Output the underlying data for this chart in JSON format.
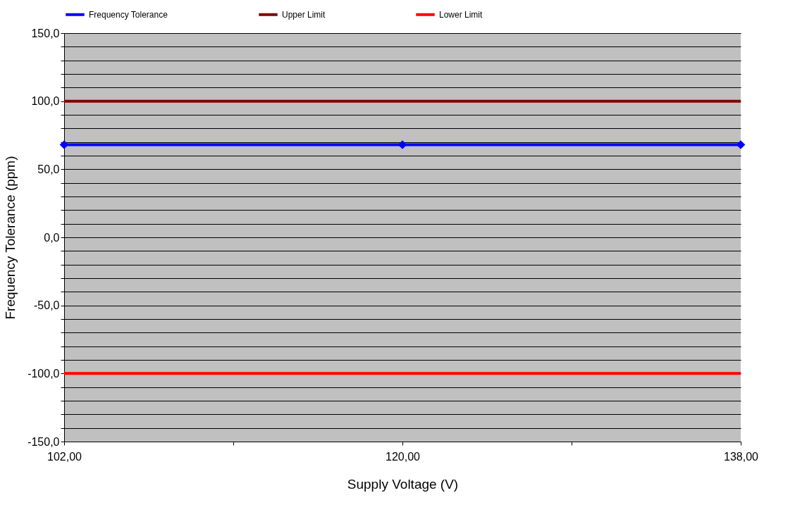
{
  "chart_data": {
    "type": "line",
    "xlabel": "Supply Voltage (V)",
    "ylabel": "Frequency Tolerance (ppm)",
    "x": [
      102,
      120,
      138
    ],
    "series": [
      {
        "name": "Frequency Tolerance",
        "color": "#0000ff",
        "values": [
          68,
          68,
          68
        ],
        "marker": "diamond"
      },
      {
        "name": "Upper Limit",
        "color": "#800000",
        "values": [
          100,
          100,
          100
        ],
        "marker": "none"
      },
      {
        "name": "Lower Limit",
        "color": "#ff0000",
        "values": [
          -100,
          -100,
          -100
        ],
        "marker": "none"
      }
    ],
    "xlim": [
      102,
      138
    ],
    "xticks": [
      {
        "value": 102,
        "label": "102,00"
      },
      {
        "value": 111,
        "label": null
      },
      {
        "value": 120,
        "label": "120,00"
      },
      {
        "value": 129,
        "label": null
      },
      {
        "value": 138,
        "label": "138,00"
      }
    ],
    "ylim": [
      -150,
      150
    ],
    "yticks": [
      {
        "value": -150,
        "label": "-150,0"
      },
      {
        "value": -140,
        "label": null
      },
      {
        "value": -130,
        "label": null
      },
      {
        "value": -120,
        "label": null
      },
      {
        "value": -110,
        "label": null
      },
      {
        "value": -100,
        "label": "-100,0"
      },
      {
        "value": -90,
        "label": null
      },
      {
        "value": -80,
        "label": null
      },
      {
        "value": -70,
        "label": null
      },
      {
        "value": -60,
        "label": null
      },
      {
        "value": -50,
        "label": "-50,0"
      },
      {
        "value": -40,
        "label": null
      },
      {
        "value": -30,
        "label": null
      },
      {
        "value": -20,
        "label": null
      },
      {
        "value": -10,
        "label": null
      },
      {
        "value": 0,
        "label": "0,0"
      },
      {
        "value": 10,
        "label": null
      },
      {
        "value": 20,
        "label": null
      },
      {
        "value": 30,
        "label": null
      },
      {
        "value": 40,
        "label": null
      },
      {
        "value": 50,
        "label": "50,0"
      },
      {
        "value": 60,
        "label": null
      },
      {
        "value": 70,
        "label": null
      },
      {
        "value": 80,
        "label": null
      },
      {
        "value": 90,
        "label": null
      },
      {
        "value": 100,
        "label": "100,0"
      },
      {
        "value": 110,
        "label": null
      },
      {
        "value": 120,
        "label": null
      },
      {
        "value": 130,
        "label": null
      },
      {
        "value": 140,
        "label": null
      },
      {
        "value": 150,
        "label": "150,0"
      }
    ],
    "grid": "y",
    "legend": "top",
    "line_style": "solid"
  }
}
